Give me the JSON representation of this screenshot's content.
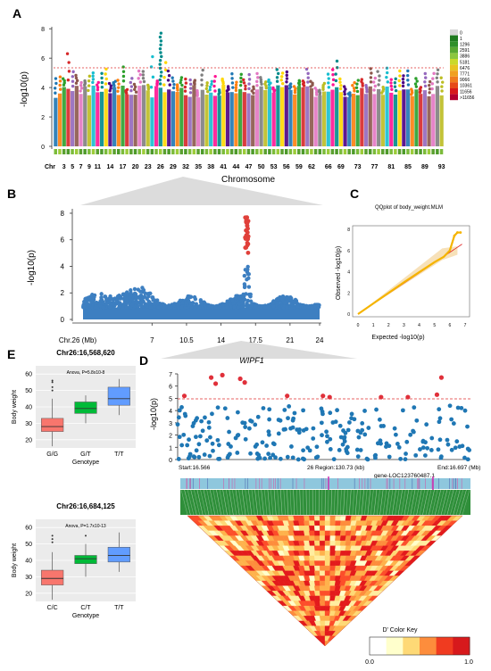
{
  "panels": {
    "A": {
      "letter": "A",
      "ylabel": "-log10(p)",
      "yticks": [
        "0",
        "2",
        "4",
        "6",
        "8"
      ],
      "xlabel": "Chromosome",
      "chr_label": "Chr"
    },
    "B": {
      "letter": "B",
      "ylabel": "-log10(p)",
      "yticks": [
        "0",
        "2",
        "4",
        "6",
        "8"
      ]
    },
    "C": {
      "letter": "C",
      "title": "QQplot of body_weight.MLM",
      "ylabel": "Observed -log10(p)",
      "xlabel": "Expected -log10(p)",
      "yticks": [
        "0",
        "2",
        "4",
        "6",
        "8"
      ],
      "xticks": [
        "0",
        "1",
        "2",
        "3",
        "4",
        "5",
        "6",
        "7"
      ]
    },
    "D": {
      "letter": "D",
      "gene": "WIPF1",
      "ylabel": "-log10(p)",
      "yticks": [
        "0",
        "1",
        "2",
        "3",
        "4",
        "5",
        "6",
        "7"
      ],
      "start_label": "Start:16.566",
      "region_label": "26 Region:130.73 (kb)",
      "end_label": "End:16.697 (Mb)",
      "gene_label": "gene-LOC123760487.1",
      "colorkey_title": "D' Color Key",
      "colorkey_min": "0.0",
      "colorkey_max": "1.0"
    },
    "E": {
      "letter": "E"
    }
  },
  "chart_data": [
    {
      "id": "A",
      "type": "scatter",
      "title": "",
      "xlabel": "Chromosome",
      "ylabel": "-log10(p)",
      "ylim": [
        0,
        8.5
      ],
      "threshold": 5.0,
      "chromosome_tick_labels": [
        "Chr",
        "3",
        "5",
        "7",
        "9",
        "11",
        "14",
        "17",
        "20",
        "23",
        "26",
        "29",
        "32",
        "35",
        "38",
        "41",
        "44",
        "47",
        "50",
        "53",
        "56",
        "59",
        "62",
        "66",
        "69",
        "73",
        "77",
        "81",
        "85",
        "89",
        "93"
      ],
      "chromosome_count": 93,
      "notable_peaks": [
        {
          "chr": 26,
          "peak": 7.7
        },
        {
          "chr": 4,
          "peak": 6.3
        },
        {
          "chr": 24,
          "peak": 6.1
        },
        {
          "chr": 27,
          "peak": 5.7
        },
        {
          "chr": 68,
          "peak": 5.8
        }
      ],
      "density_legend": {
        "labels": [
          "0",
          "1",
          "1296",
          "2591",
          "3886",
          "5181",
          "6476",
          "7771",
          "9066",
          "10361",
          "11656",
          ">11656"
        ],
        "colors": [
          "#d6d6d6",
          "#1f7a1f",
          "#2f8f2a",
          "#59a832",
          "#8cc63f",
          "#c9d92a",
          "#e8c320",
          "#f0a020",
          "#f07b1e",
          "#e64a19",
          "#d7191c",
          "#b2002f"
        ]
      }
    },
    {
      "id": "B",
      "type": "scatter",
      "title": "",
      "xlabel": "Chr.26 (Mb)",
      "ylabel": "-log10(p)",
      "ylim": [
        0,
        8.2
      ],
      "xlim": [
        0,
        24
      ],
      "xticks": [
        "7",
        "10.5",
        "14",
        "17.5",
        "21",
        "24"
      ],
      "peak": {
        "x": 16.6,
        "y": 7.7
      },
      "significant_threshold": 5.0
    },
    {
      "id": "C",
      "type": "line",
      "title": "QQplot of body_weight.MLM",
      "xlabel": "Expected -log10(p)",
      "ylabel": "Observed -log10(p)",
      "xlim": [
        0,
        7
      ],
      "ylim": [
        0,
        8
      ],
      "series": [
        {
          "name": "",
          "points": [
            [
              0,
              0
            ],
            [
              1,
              1.0
            ],
            [
              2,
              2.0
            ],
            [
              3,
              3.0
            ],
            [
              4,
              3.95
            ],
            [
              5,
              4.9
            ],
            [
              5.6,
              5.4
            ],
            [
              6,
              6.0
            ],
            [
              6.3,
              7.4
            ],
            [
              6.5,
              7.7
            ],
            [
              6.7,
              7.7
            ]
          ]
        }
      ]
    },
    {
      "id": "D",
      "type": "scatter",
      "title": "WIPF1",
      "ylabel": "-log10(p)",
      "ylim": [
        0,
        7
      ],
      "threshold": 5.0,
      "x_start_mb": 16.566,
      "x_end_mb": 16.697,
      "significant_points": [
        [
          16.569,
          5.2
        ],
        [
          16.581,
          6.7
        ],
        [
          16.583,
          6.2
        ],
        [
          16.586,
          6.9
        ],
        [
          16.594,
          6.6
        ],
        [
          16.596,
          6.3
        ],
        [
          16.615,
          5.2
        ],
        [
          16.631,
          5.2
        ],
        [
          16.634,
          5.1
        ],
        [
          16.657,
          5.1
        ],
        [
          16.669,
          5.1
        ],
        [
          16.682,
          5.3
        ],
        [
          16.684,
          6.7
        ]
      ]
    },
    {
      "id": "E1",
      "type": "box",
      "title": "Chr26:16,568,620",
      "annotation": "Anova, P=5.8x10-8",
      "xlabel": "Genotype",
      "ylabel": "Body weight",
      "ylim": [
        15,
        65
      ],
      "categories": [
        "G/G",
        "G/T",
        "T/T"
      ],
      "boxes": [
        {
          "q1": 25,
          "median": 28,
          "q3": 33,
          "whisker_low": 16,
          "whisker_high": 45,
          "color": "#f8766d"
        },
        {
          "q1": 36,
          "median": 39,
          "q3": 43,
          "whisker_low": 30,
          "whisker_high": 47,
          "color": "#00ba38"
        },
        {
          "q1": 41,
          "median": 45,
          "q3": 52,
          "whisker_low": 35,
          "whisker_high": 57,
          "color": "#619cff"
        }
      ],
      "outliers": [
        [
          0,
          50
        ],
        [
          0,
          52
        ],
        [
          0,
          55
        ],
        [
          0,
          56
        ]
      ]
    },
    {
      "id": "E2",
      "type": "box",
      "title": "Chr26:16,684,125",
      "annotation": "Anova, P=1.7x10-13",
      "xlabel": "Genotype",
      "ylabel": "Body weight",
      "ylim": [
        15,
        65
      ],
      "categories": [
        "C/C",
        "C/T",
        "T/T"
      ],
      "boxes": [
        {
          "q1": 25,
          "median": 29,
          "q3": 34,
          "whisker_low": 16,
          "whisker_high": 45,
          "color": "#f8766d"
        },
        {
          "q1": 38,
          "median": 41,
          "q3": 43,
          "whisker_low": 30,
          "whisker_high": 50,
          "color": "#00ba38"
        },
        {
          "q1": 39,
          "median": 43,
          "q3": 48,
          "whisker_low": 33,
          "whisker_high": 57,
          "color": "#619cff"
        }
      ],
      "outliers": [
        [
          0,
          51
        ],
        [
          0,
          53
        ],
        [
          0,
          55
        ],
        [
          1,
          55
        ]
      ]
    }
  ]
}
